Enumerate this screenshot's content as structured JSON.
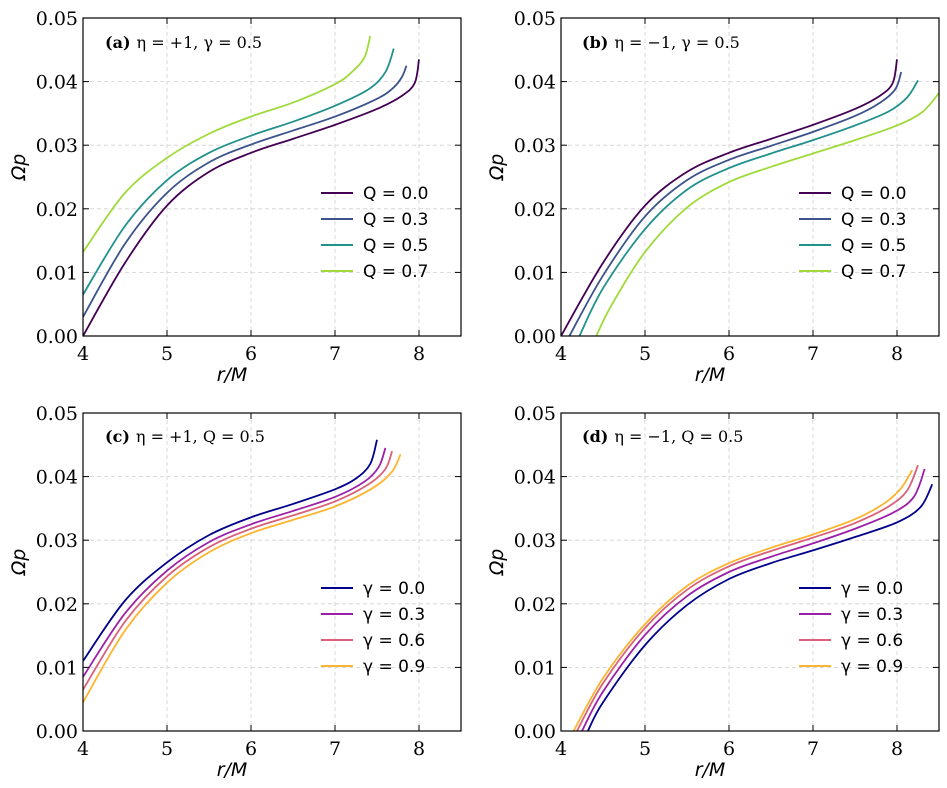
{
  "chart_data": [
    {
      "type": "line",
      "panel_label": "(a)",
      "annotation": "η = +1, γ = 0.5",
      "xlabel": "r/M",
      "ylabel": "Ωp",
      "xlim": [
        4,
        8.5
      ],
      "ylim": [
        0,
        0.05
      ],
      "xticks": [
        "4",
        "5",
        "6",
        "7",
        "8"
      ],
      "yticks": [
        "0.00",
        "0.01",
        "0.02",
        "0.03",
        "0.04",
        "0.05"
      ],
      "grid": true,
      "legend_placement": "center-right",
      "series": [
        {
          "name": "Q = 0.0",
          "color": "#440154",
          "x": [
            4.0,
            4.5,
            5.0,
            5.5,
            6.0,
            6.5,
            7.0,
            7.5,
            7.8,
            7.95,
            8.0
          ],
          "y": [
            0.0,
            0.0115,
            0.0205,
            0.0258,
            0.0288,
            0.031,
            0.0332,
            0.0357,
            0.0378,
            0.0398,
            0.0435
          ]
        },
        {
          "name": "Q = 0.3",
          "color": "#3b528b",
          "x": [
            4.0,
            4.5,
            5.0,
            5.5,
            6.0,
            6.5,
            7.0,
            7.5,
            7.7,
            7.8,
            7.85
          ],
          "y": [
            0.003,
            0.0145,
            0.0225,
            0.0273,
            0.0301,
            0.0323,
            0.0345,
            0.0373,
            0.0391,
            0.0408,
            0.0425
          ]
        },
        {
          "name": "Q = 0.5",
          "color": "#21918c",
          "x": [
            4.0,
            4.5,
            5.0,
            5.5,
            6.0,
            6.5,
            7.0,
            7.4,
            7.6,
            7.7
          ],
          "y": [
            0.0065,
            0.0173,
            0.0245,
            0.0288,
            0.0315,
            0.0337,
            0.0362,
            0.0388,
            0.0415,
            0.0452
          ]
        },
        {
          "name": "Q = 0.7",
          "color": "#9fda3a",
          "x": [
            4.0,
            4.5,
            5.0,
            5.5,
            6.0,
            6.5,
            7.0,
            7.2,
            7.35,
            7.42
          ],
          "y": [
            0.0132,
            0.0225,
            0.028,
            0.0318,
            0.0345,
            0.0367,
            0.0396,
            0.0415,
            0.0438,
            0.0472
          ]
        }
      ]
    },
    {
      "type": "line",
      "panel_label": "(b)",
      "annotation": "η = −1, γ = 0.5",
      "xlabel": "r/M",
      "ylabel": "Ωp",
      "xlim": [
        4,
        8.5
      ],
      "ylim": [
        0,
        0.05
      ],
      "xticks": [
        "4",
        "5",
        "6",
        "7",
        "8"
      ],
      "yticks": [
        "0.00",
        "0.01",
        "0.02",
        "0.03",
        "0.04",
        "0.05"
      ],
      "grid": true,
      "legend_placement": "center-right",
      "series": [
        {
          "name": "Q = 0.0",
          "color": "#440154",
          "x": [
            4.0,
            4.5,
            5.0,
            5.5,
            6.0,
            6.5,
            7.0,
            7.5,
            7.8,
            7.95,
            8.0
          ],
          "y": [
            0.0,
            0.0115,
            0.0205,
            0.0258,
            0.0288,
            0.031,
            0.0332,
            0.0357,
            0.0378,
            0.0398,
            0.0435
          ]
        },
        {
          "name": "Q = 0.3",
          "color": "#3b528b",
          "x": [
            4.1,
            4.5,
            5.0,
            5.5,
            6.0,
            6.5,
            7.0,
            7.5,
            7.8,
            7.98,
            8.05
          ],
          "y": [
            0.0,
            0.0095,
            0.0188,
            0.0245,
            0.0277,
            0.0299,
            0.0321,
            0.0346,
            0.0367,
            0.0388,
            0.0415
          ]
        },
        {
          "name": "Q = 0.5",
          "color": "#21918c",
          "x": [
            4.22,
            4.5,
            5.0,
            5.5,
            6.0,
            6.5,
            7.0,
            7.5,
            7.9,
            8.12,
            8.25
          ],
          "y": [
            0.0,
            0.0075,
            0.0168,
            0.023,
            0.0264,
            0.0287,
            0.0308,
            0.0331,
            0.0353,
            0.0375,
            0.0402
          ]
        },
        {
          "name": "Q = 0.7",
          "color": "#9fda3a",
          "x": [
            4.42,
            4.6,
            5.0,
            5.5,
            6.0,
            6.5,
            7.0,
            7.5,
            8.0,
            8.3,
            8.5
          ],
          "y": [
            0.0,
            0.0048,
            0.0132,
            0.0202,
            0.0242,
            0.0266,
            0.0287,
            0.0308,
            0.0331,
            0.0352,
            0.0382
          ]
        }
      ]
    },
    {
      "type": "line",
      "panel_label": "(c)",
      "annotation": "η = +1, Q = 0.5",
      "xlabel": "r/M",
      "ylabel": "Ωp",
      "xlim": [
        4,
        8.5
      ],
      "ylim": [
        0,
        0.05
      ],
      "xticks": [
        "4",
        "5",
        "6",
        "7",
        "8"
      ],
      "yticks": [
        "0.00",
        "0.01",
        "0.02",
        "0.03",
        "0.04",
        "0.05"
      ],
      "grid": true,
      "legend_placement": "center-right",
      "series": [
        {
          "name": "γ = 0.0",
          "color": "#00008b",
          "x": [
            4.0,
            4.5,
            5.0,
            5.5,
            6.0,
            6.5,
            7.0,
            7.25,
            7.42,
            7.5
          ],
          "y": [
            0.011,
            0.0205,
            0.0265,
            0.0308,
            0.0336,
            0.0357,
            0.038,
            0.0397,
            0.042,
            0.0458
          ]
        },
        {
          "name": "γ = 0.3",
          "color": "#9b1fa8",
          "x": [
            4.0,
            4.5,
            5.0,
            5.5,
            6.0,
            6.5,
            7.0,
            7.35,
            7.52,
            7.6
          ],
          "y": [
            0.0085,
            0.0185,
            0.0252,
            0.0297,
            0.0325,
            0.0346,
            0.0368,
            0.0392,
            0.0415,
            0.0445
          ]
        },
        {
          "name": "γ = 0.6",
          "color": "#d9607a",
          "x": [
            4.0,
            4.5,
            5.0,
            5.5,
            6.0,
            6.5,
            7.0,
            7.4,
            7.6,
            7.68
          ],
          "y": [
            0.0065,
            0.0172,
            0.0243,
            0.0289,
            0.0318,
            0.0339,
            0.0361,
            0.0388,
            0.0412,
            0.044
          ]
        },
        {
          "name": "γ = 0.9",
          "color": "#fdb42f",
          "x": [
            4.0,
            4.5,
            5.0,
            5.5,
            6.0,
            6.5,
            7.0,
            7.45,
            7.68,
            7.78
          ],
          "y": [
            0.0045,
            0.0158,
            0.0233,
            0.0281,
            0.0311,
            0.0332,
            0.0353,
            0.0382,
            0.0408,
            0.0435
          ]
        }
      ]
    },
    {
      "type": "line",
      "panel_label": "(d)",
      "annotation": "η = −1, Q = 0.5",
      "xlabel": "r/M",
      "ylabel": "Ωp",
      "xlim": [
        4,
        8.5
      ],
      "ylim": [
        0,
        0.05
      ],
      "xticks": [
        "4",
        "5",
        "6",
        "7",
        "8"
      ],
      "yticks": [
        "0.00",
        "0.01",
        "0.02",
        "0.03",
        "0.04",
        "0.05"
      ],
      "grid": true,
      "legend_placement": "center-right",
      "series": [
        {
          "name": "γ = 0.0",
          "color": "#00008b",
          "x": [
            4.32,
            4.5,
            5.0,
            5.5,
            6.0,
            6.5,
            7.0,
            7.5,
            8.0,
            8.28,
            8.42
          ],
          "y": [
            0.0,
            0.0045,
            0.0135,
            0.0198,
            0.0239,
            0.0264,
            0.0284,
            0.0305,
            0.0328,
            0.0352,
            0.0388
          ]
        },
        {
          "name": "γ = 0.3",
          "color": "#9b1fa8",
          "x": [
            4.25,
            4.5,
            5.0,
            5.5,
            6.0,
            6.5,
            7.0,
            7.5,
            7.95,
            8.2,
            8.33
          ],
          "y": [
            0.0,
            0.0062,
            0.0151,
            0.0212,
            0.025,
            0.0274,
            0.0295,
            0.0318,
            0.0343,
            0.0368,
            0.0412
          ]
        },
        {
          "name": "γ = 0.6",
          "color": "#d9607a",
          "x": [
            4.19,
            4.5,
            5.0,
            5.5,
            6.0,
            6.5,
            7.0,
            7.5,
            7.9,
            8.12,
            8.25
          ],
          "y": [
            0.0,
            0.0075,
            0.0162,
            0.0222,
            0.0259,
            0.0283,
            0.0304,
            0.0327,
            0.0353,
            0.0378,
            0.0418
          ]
        },
        {
          "name": "γ = 0.9",
          "color": "#fdb42f",
          "x": [
            4.15,
            4.5,
            5.0,
            5.5,
            6.0,
            6.5,
            7.0,
            7.5,
            7.85,
            8.05,
            8.18
          ],
          "y": [
            0.0,
            0.0083,
            0.0168,
            0.0228,
            0.0264,
            0.0288,
            0.0309,
            0.0333,
            0.0358,
            0.0382,
            0.041
          ]
        }
      ]
    }
  ]
}
